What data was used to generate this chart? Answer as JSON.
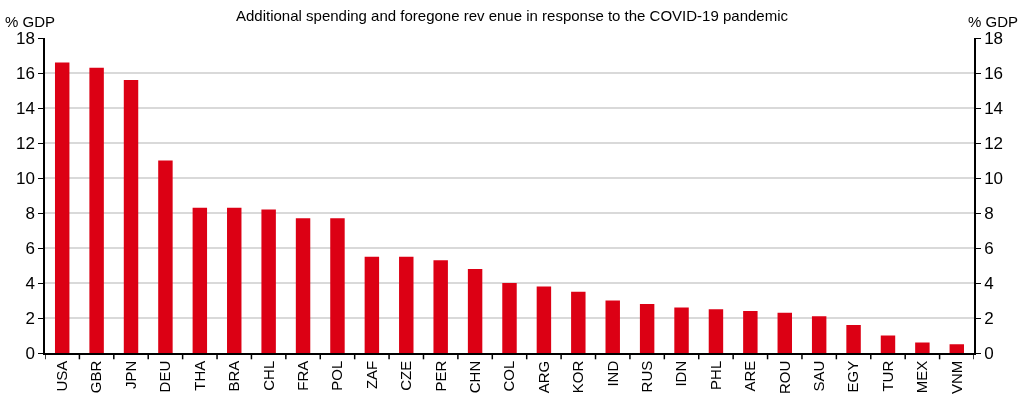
{
  "chart_data": {
    "type": "bar",
    "title": "Additional spending and foregone rev enue in response to the COVID-19 pandemic",
    "ylabel": "% GDP",
    "y2label": "% GDP",
    "categories": [
      "USA",
      "GBR",
      "JPN",
      "DEU",
      "THA",
      "BRA",
      "CHL",
      "FRA",
      "POL",
      "ZAF",
      "CZE",
      "PER",
      "CHN",
      "COL",
      "ARG",
      "KOR",
      "IND",
      "RUS",
      "IDN",
      "PHL",
      "ARE",
      "ROU",
      "SAU",
      "EGY",
      "TUR",
      "MEX",
      "VNM"
    ],
    "values": [
      16.6,
      16.3,
      15.6,
      11.0,
      8.3,
      8.3,
      8.2,
      7.7,
      7.7,
      5.5,
      5.5,
      5.3,
      4.8,
      4.0,
      3.8,
      3.5,
      3.0,
      2.8,
      2.6,
      2.5,
      2.4,
      2.3,
      2.1,
      1.6,
      1.0,
      0.6,
      0.5
    ],
    "color": "#dc0014",
    "ylim": [
      0,
      18
    ],
    "yticks": [
      0,
      2,
      4,
      6,
      8,
      10,
      12,
      14,
      16,
      18
    ],
    "y2lim": [
      0,
      18
    ],
    "y2ticks": [
      0,
      2,
      4,
      6,
      8,
      10,
      12,
      14,
      16,
      18
    ],
    "grid": "y"
  }
}
